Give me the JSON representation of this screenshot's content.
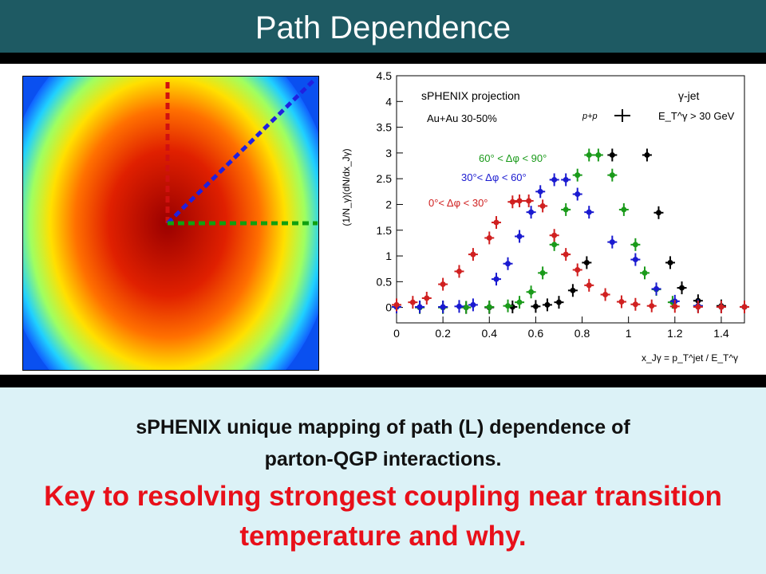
{
  "title": "Path Dependence",
  "chart_data": {
    "type": "scatter",
    "annotations": [
      "sPHENIX projection",
      "Au+Au 30-50%",
      "γ-jet",
      "E_T^γ > 30 GeV"
    ],
    "ylabel": "(1/N_γ)(dN/dx_Jγ)",
    "xlabel": "x_Jγ = p_T^jet / E_T^γ",
    "xlim": [
      0,
      1.5
    ],
    "ylim": [
      -0.3,
      4.5
    ],
    "xticks": [
      0,
      0.2,
      0.4,
      0.6,
      0.8,
      1,
      1.2,
      1.4
    ],
    "yticks": [
      0,
      0.5,
      1,
      1.5,
      2,
      2.5,
      3,
      3.5,
      4,
      4.5
    ],
    "series": [
      {
        "name": "p+p",
        "color": "#000000",
        "x": [
          0,
          0.1,
          0.2,
          0.3,
          0.4,
          0.5,
          0.6,
          0.65,
          0.7,
          0.76,
          0.82,
          0.93,
          1.08,
          1.13,
          1.18,
          1.23,
          1.3,
          1.4,
          1.5
        ],
        "values": [
          0.01,
          0,
          0,
          0,
          0,
          0.01,
          0.02,
          0.05,
          0.1,
          0.33,
          0.87,
          2.96,
          2.96,
          1.84,
          0.87,
          0.38,
          0.13,
          0.03,
          0.01
        ]
      },
      {
        "name": "60° < Δφ < 90°",
        "color": "#1a9a1a",
        "x": [
          0,
          0.1,
          0.2,
          0.3,
          0.4,
          0.48,
          0.53,
          0.58,
          0.63,
          0.68,
          0.73,
          0.78,
          0.83,
          0.87,
          0.93,
          0.98,
          1.03,
          1.07,
          1.12,
          1.19,
          1.3,
          1.4,
          1.5
        ],
        "values": [
          0.01,
          0,
          0,
          0,
          0.01,
          0.03,
          0.1,
          0.3,
          0.67,
          1.22,
          1.9,
          2.57,
          2.96,
          2.96,
          2.57,
          1.9,
          1.22,
          0.67,
          0.35,
          0.1,
          0.03,
          0.01,
          0.01
        ]
      },
      {
        "name": "30°< Δφ < 60°",
        "color": "#1a1ad0",
        "x": [
          0,
          0.1,
          0.2,
          0.27,
          0.33,
          0.43,
          0.48,
          0.53,
          0.58,
          0.62,
          0.68,
          0.73,
          0.78,
          0.83,
          0.93,
          1.03,
          1.12,
          1.2,
          1.3,
          1.4,
          1.5
        ],
        "values": [
          0.01,
          0.01,
          0.01,
          0.02,
          0.05,
          0.55,
          0.85,
          1.38,
          1.85,
          2.25,
          2.48,
          2.48,
          2.2,
          1.85,
          1.27,
          0.93,
          0.36,
          0.12,
          0.03,
          0.01,
          0.01
        ]
      },
      {
        "name": "0°< Δφ < 30°",
        "color": "#d02020",
        "x": [
          0,
          0.07,
          0.13,
          0.2,
          0.27,
          0.33,
          0.4,
          0.43,
          0.5,
          0.53,
          0.57,
          0.63,
          0.68,
          0.73,
          0.78,
          0.83,
          0.9,
          0.97,
          1.03,
          1.1,
          1.2,
          1.3,
          1.4,
          1.5
        ],
        "values": [
          0.05,
          0.1,
          0.18,
          0.45,
          0.7,
          1.03,
          1.35,
          1.65,
          2.05,
          2.07,
          2.07,
          1.97,
          1.4,
          1.03,
          0.73,
          0.43,
          0.25,
          0.11,
          0.06,
          0.03,
          0.02,
          0.01,
          0.01,
          0.01
        ]
      }
    ]
  },
  "text": {
    "line1": "sPHENIX unique mapping of path (L) dependence of",
    "line2": "parton-QGP interactions.",
    "line3": "Key to resolving strongest coupling near transition",
    "line4": "temperature and why."
  }
}
